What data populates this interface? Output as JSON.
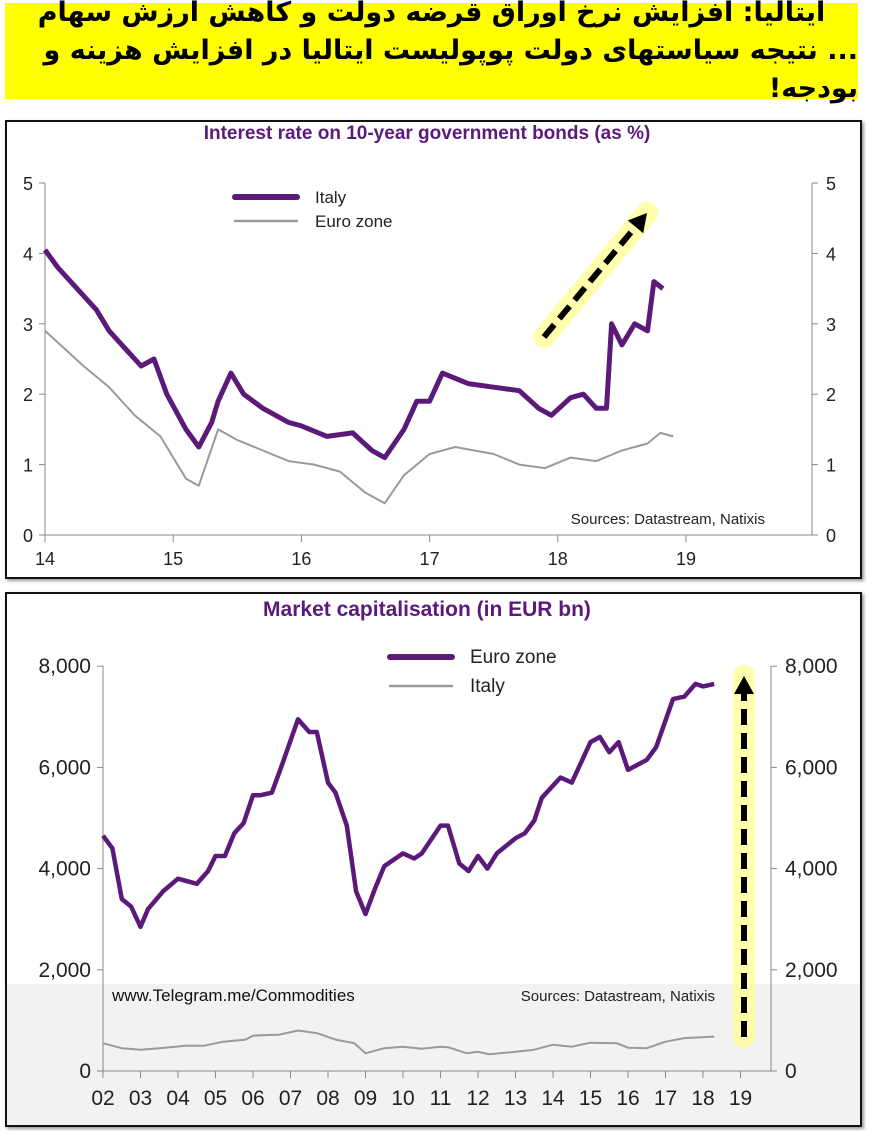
{
  "banner": {
    "line1": "ایتالیا: افزایش نرخ اوراق قرضه دولت و کاهش ارزش سهام",
    "line2": "... نتیجه سیاستهای دولت پوپولیست ایتالیا در افزایش هزینه و بودجه!",
    "background": "#ffff00"
  },
  "chart_data": [
    {
      "type": "line",
      "title": "Interest rate on 10-year government bonds (as %)",
      "source": "Sources:  Datastream,  Natixis",
      "xlim": [
        2014,
        2019.5
      ],
      "ylim": [
        0,
        5
      ],
      "x_ticks": [
        "14",
        "15",
        "16",
        "17",
        "18",
        "19"
      ],
      "y_ticks": [
        "0",
        "1",
        "2",
        "3",
        "4",
        "5"
      ],
      "legend": "top-left",
      "grid": false,
      "annotation": "dashed arrow pointing up (rising rates)",
      "series": [
        {
          "name": "Italy",
          "color": "#5b1a7a",
          "x": [
            2014.0,
            2014.1,
            2014.25,
            2014.4,
            2014.5,
            2014.6,
            2014.75,
            2014.85,
            2014.95,
            2015.1,
            2015.2,
            2015.3,
            2015.35,
            2015.45,
            2015.55,
            2015.7,
            2015.9,
            2016.0,
            2016.2,
            2016.4,
            2016.55,
            2016.65,
            2016.8,
            2016.9,
            2017.0,
            2017.1,
            2017.3,
            2017.5,
            2017.7,
            2017.85,
            2017.95,
            2018.1,
            2018.2,
            2018.3,
            2018.38,
            2018.42,
            2018.5,
            2018.6,
            2018.7,
            2018.75,
            2018.82
          ],
          "y": [
            4.05,
            3.8,
            3.5,
            3.2,
            2.9,
            2.7,
            2.4,
            2.5,
            2.0,
            1.5,
            1.25,
            1.6,
            1.9,
            2.3,
            2.0,
            1.8,
            1.6,
            1.55,
            1.4,
            1.45,
            1.2,
            1.1,
            1.5,
            1.9,
            1.9,
            2.3,
            2.15,
            2.1,
            2.05,
            1.8,
            1.7,
            1.95,
            2.0,
            1.8,
            1.8,
            3.0,
            2.7,
            3.0,
            2.9,
            3.6,
            3.5
          ]
        },
        {
          "name": "Euro zone",
          "color": "#9a9a9a",
          "x": [
            2014.0,
            2014.3,
            2014.5,
            2014.7,
            2014.9,
            2015.1,
            2015.2,
            2015.35,
            2015.5,
            2015.7,
            2015.9,
            2016.1,
            2016.3,
            2016.5,
            2016.65,
            2016.8,
            2017.0,
            2017.2,
            2017.5,
            2017.7,
            2017.9,
            2018.1,
            2018.3,
            2018.5,
            2018.7,
            2018.8,
            2018.9
          ],
          "y": [
            2.9,
            2.4,
            2.1,
            1.7,
            1.4,
            0.8,
            0.7,
            1.5,
            1.35,
            1.2,
            1.05,
            1.0,
            0.9,
            0.6,
            0.45,
            0.85,
            1.15,
            1.25,
            1.15,
            1.0,
            0.95,
            1.1,
            1.05,
            1.2,
            1.3,
            1.45,
            1.4
          ]
        }
      ]
    },
    {
      "type": "line",
      "title": "Market capitalisation (in EUR bn)",
      "source": "Sources: Datastream, Natixis",
      "watermark": "www.Telegram.me/Commodities",
      "xlim": [
        2002,
        2019.8
      ],
      "ylim": [
        0,
        8000
      ],
      "x_ticks": [
        "02",
        "03",
        "04",
        "05",
        "06",
        "07",
        "08",
        "09",
        "10",
        "11",
        "12",
        "13",
        "14",
        "15",
        "16",
        "17",
        "18",
        "19"
      ],
      "y_ticks": [
        "0",
        "2,000",
        "4,000",
        "6,000",
        "8,000"
      ],
      "legend": "top-center",
      "grid": false,
      "annotation": "dashed arrow pointing up",
      "series": [
        {
          "name": "Euro zone",
          "color": "#5b1a7a",
          "x": [
            2002.0,
            2002.25,
            2002.5,
            2002.75,
            2003.0,
            2003.2,
            2003.6,
            2004.0,
            2004.5,
            2004.8,
            2005.0,
            2005.25,
            2005.5,
            2005.75,
            2006.0,
            2006.2,
            2006.5,
            2006.75,
            2007.2,
            2007.5,
            2007.7,
            2008.0,
            2008.2,
            2008.5,
            2008.75,
            2009.0,
            2009.25,
            2009.5,
            2010.0,
            2010.3,
            2010.5,
            2011.0,
            2011.2,
            2011.5,
            2011.75,
            2012.0,
            2012.25,
            2012.5,
            2013.0,
            2013.25,
            2013.5,
            2013.7,
            2014.2,
            2014.5,
            2015.0,
            2015.25,
            2015.5,
            2015.75,
            2016.0,
            2016.5,
            2016.75,
            2017.2,
            2017.5,
            2017.8,
            2018.0,
            2018.3
          ],
          "y": [
            4650,
            4400,
            3400,
            3250,
            2850,
            3200,
            3550,
            3800,
            3700,
            3950,
            4250,
            4250,
            4700,
            4900,
            5450,
            5450,
            5500,
            6000,
            6950,
            6700,
            6700,
            5700,
            5500,
            4850,
            3550,
            3100,
            3600,
            4050,
            4300,
            4200,
            4300,
            4850,
            4850,
            4100,
            3950,
            4250,
            4000,
            4300,
            4600,
            4700,
            4950,
            5400,
            5800,
            5700,
            6500,
            6600,
            6300,
            6500,
            5950,
            6150,
            6400,
            7350,
            7400,
            7650,
            7600,
            7650
          ]
        },
        {
          "name": "Italy",
          "color": "#9a9a9a",
          "x": [
            2002.0,
            2002.5,
            2003.0,
            2003.5,
            2004.2,
            2004.7,
            2005.2,
            2005.8,
            2006.0,
            2006.7,
            2007.2,
            2007.7,
            2008.2,
            2008.7,
            2009.0,
            2009.5,
            2010.0,
            2010.5,
            2011.0,
            2011.2,
            2011.7,
            2012.0,
            2012.3,
            2013.0,
            2013.5,
            2014.0,
            2014.5,
            2015.0,
            2015.7,
            2016.0,
            2016.5,
            2017.0,
            2017.5,
            2018.3
          ],
          "y": [
            550,
            450,
            420,
            450,
            500,
            500,
            580,
            620,
            700,
            720,
            800,
            750,
            620,
            550,
            350,
            450,
            480,
            440,
            480,
            470,
            350,
            380,
            330,
            380,
            420,
            520,
            480,
            560,
            550,
            460,
            450,
            580,
            650,
            680
          ]
        }
      ]
    }
  ]
}
